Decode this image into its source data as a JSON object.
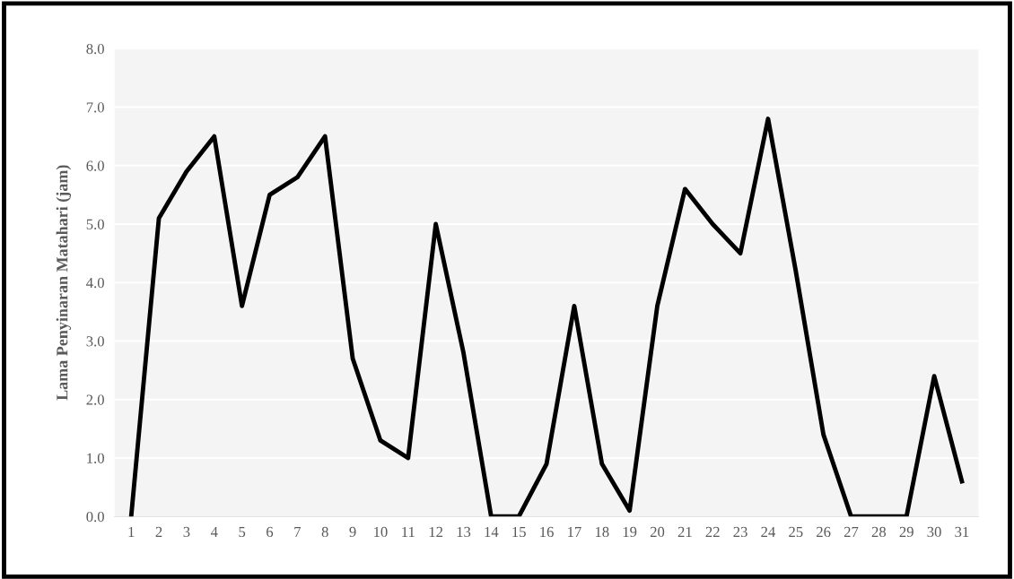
{
  "chart_data": {
    "type": "line",
    "ylabel": "Lama Penyinaran Matahari (jam)",
    "categories": [
      "1",
      "2",
      "3",
      "4",
      "5",
      "6",
      "7",
      "8",
      "9",
      "10",
      "11",
      "12",
      "13",
      "14",
      "15",
      "16",
      "17",
      "18",
      "19",
      "20",
      "21",
      "22",
      "23",
      "24",
      "25",
      "26",
      "27",
      "28",
      "29",
      "30",
      "31"
    ],
    "series": [
      {
        "color": "#000000",
        "values": [
          0,
          5.1,
          5.9,
          6.5,
          3.6,
          5.5,
          5.8,
          6.5,
          2.7,
          1.3,
          1.0,
          5.0,
          2.8,
          0,
          0,
          0.9,
          3.6,
          0.9,
          0.1,
          3.6,
          5.6,
          5.0,
          4.5,
          6.8,
          4.2,
          1.4,
          0,
          0,
          0,
          2.4,
          0.6
        ]
      }
    ],
    "ylim": [
      0,
      8
    ],
    "yticks": [
      {
        "value": 0,
        "label": "0.0"
      },
      {
        "value": 1,
        "label": "1.0"
      },
      {
        "value": 2,
        "label": "2.0"
      },
      {
        "value": 3,
        "label": "3.0"
      },
      {
        "value": 4,
        "label": "4.0"
      },
      {
        "value": 5,
        "label": "5.0"
      },
      {
        "value": 6,
        "label": "6.0"
      },
      {
        "value": 7,
        "label": "7.0"
      },
      {
        "value": 8,
        "label": "8.0"
      }
    ],
    "grid": "y",
    "marker": "none",
    "line_style": "solid",
    "legend": false
  }
}
